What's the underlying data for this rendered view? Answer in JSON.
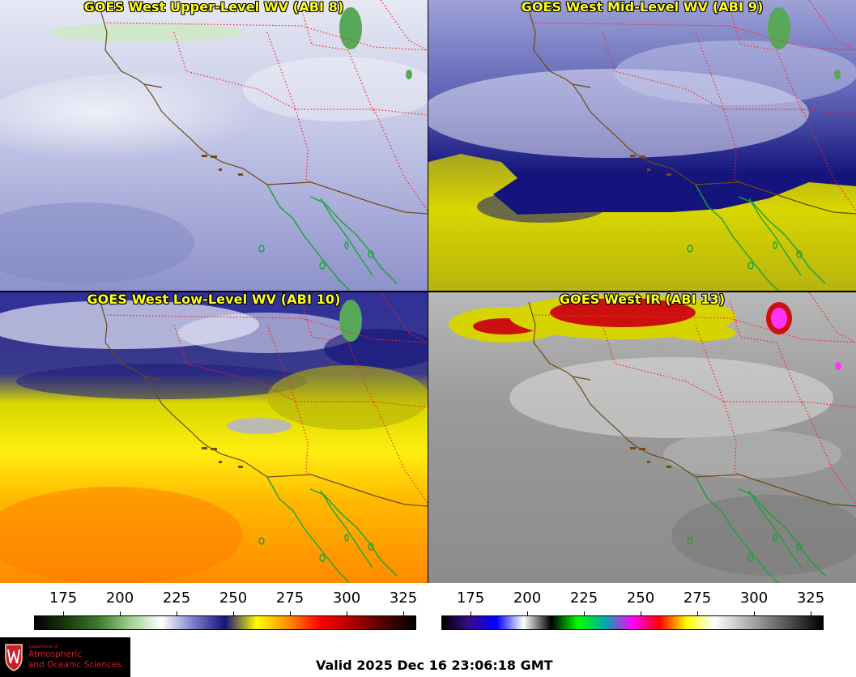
{
  "panels": [
    {
      "title": "GOES West Upper-Level WV (ABI 8)"
    },
    {
      "title": "GOES West Mid-Level WV (ABI 9)"
    },
    {
      "title": "GOES West Low-Level WV (ABI 10)"
    },
    {
      "title": "GOES West IR (ABI 13)"
    }
  ],
  "wv_scale": {
    "ticks": [
      "175",
      "200",
      "225",
      "250",
      "275",
      "300",
      "325"
    ],
    "colors": [
      "#000000",
      "#1a3a10",
      "#3c7a2c",
      "#9ed08f",
      "#ffffff",
      "#7a7dc8",
      "#14147c",
      "#ffff00",
      "#ff8c00",
      "#ff0000",
      "#b00000",
      "#500000",
      "#000000"
    ]
  },
  "ir_scale": {
    "ticks": [
      "175",
      "200",
      "225",
      "250",
      "275",
      "300",
      "325"
    ],
    "colors": [
      "#000000",
      "#3a0a8c",
      "#0000ff",
      "#ffffff",
      "#000000",
      "#00ff00",
      "#00aaaa",
      "#ff00ff",
      "#ff0000",
      "#ffff00",
      "#ffffff",
      "#c0c0c0",
      "#808080",
      "#404040",
      "#000000"
    ]
  },
  "logo": {
    "department": "Department of",
    "line1": "Atmospheric",
    "line2": "and Oceanic Sciences"
  },
  "valid_time": "Valid 2025 Dec 16 23:06:18 GMT"
}
